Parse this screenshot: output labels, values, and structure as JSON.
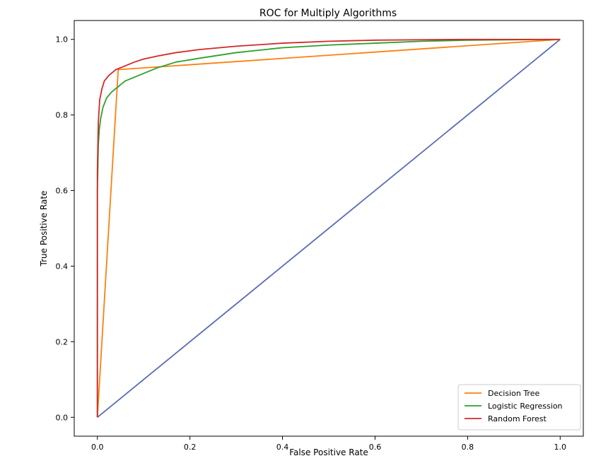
{
  "chart_data": {
    "type": "line",
    "title": "ROC for Multiply Algorithms",
    "xlabel": "False Positive Rate",
    "ylabel": "True Positive Rate",
    "xlim": [
      -0.05,
      1.05
    ],
    "ylim": [
      -0.05,
      1.05
    ],
    "xticks": [
      0.0,
      0.2,
      0.4,
      0.6,
      0.8,
      1.0
    ],
    "yticks": [
      0.0,
      0.2,
      0.4,
      0.6,
      0.8,
      1.0
    ],
    "xtick_labels": [
      "0.0",
      "0.2",
      "0.4",
      "0.6",
      "0.8",
      "1.0"
    ],
    "ytick_labels": [
      "0.0",
      "0.2",
      "0.4",
      "0.6",
      "0.8",
      "1.0"
    ],
    "grid": false,
    "legend_position": "bottom-right",
    "series": [
      {
        "name": "Decision Tree",
        "color": "#ff7f0e",
        "x": [
          0.0,
          0.045,
          1.0
        ],
        "y": [
          0.0,
          0.92,
          1.0
        ]
      },
      {
        "name": "Logistic Regression",
        "color": "#2ca02c",
        "x": [
          0.0,
          0.0,
          0.002,
          0.004,
          0.007,
          0.012,
          0.02,
          0.03,
          0.045,
          0.06,
          0.08,
          0.1,
          0.13,
          0.17,
          0.22,
          0.3,
          0.4,
          0.5,
          0.6,
          0.7,
          0.8,
          0.9,
          1.0
        ],
        "y": [
          0.0,
          0.6,
          0.72,
          0.76,
          0.79,
          0.82,
          0.845,
          0.86,
          0.875,
          0.89,
          0.9,
          0.91,
          0.925,
          0.94,
          0.95,
          0.965,
          0.978,
          0.985,
          0.99,
          0.995,
          0.998,
          0.999,
          1.0
        ]
      },
      {
        "name": "Random Forest",
        "color": "#d62728",
        "x": [
          0.0,
          0.0,
          0.002,
          0.005,
          0.01,
          0.015,
          0.025,
          0.04,
          0.06,
          0.08,
          0.1,
          0.13,
          0.17,
          0.22,
          0.3,
          0.4,
          0.5,
          0.6,
          0.7,
          0.8,
          0.9,
          1.0
        ],
        "y": [
          0.0,
          0.65,
          0.78,
          0.84,
          0.87,
          0.89,
          0.905,
          0.92,
          0.93,
          0.94,
          0.948,
          0.956,
          0.965,
          0.973,
          0.982,
          0.99,
          0.995,
          0.998,
          0.999,
          1.0,
          1.0,
          1.0
        ]
      },
      {
        "color": "#5b6bb5",
        "x": [
          0.0,
          1.0
        ],
        "y": [
          0.0,
          1.0
        ]
      }
    ]
  }
}
